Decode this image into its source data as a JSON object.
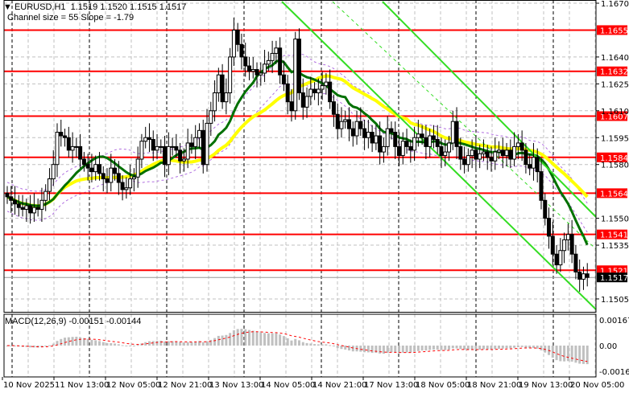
{
  "header": {
    "symbol_line": "EURUSD,H1  1.1519 1.1520 1.1515 1.1517",
    "channel_line": "Channel size = 55 Slope = -1.79",
    "macd_line": "MACD(12,26,9) -0.00151 -0.00144"
  },
  "colors": {
    "background": "#ffffff",
    "grid": "#c0c0c0",
    "level_line": "#ff0000",
    "level_label_bg": "#ff0000",
    "current_label_bg": "#000000",
    "ma_fast": "#007000",
    "ma_slow": "#ffff00",
    "channel": "#33dd22",
    "envelope": "#b06fe0",
    "macd_hist": "#c0c0c0",
    "macd_signal": "#ff0000"
  },
  "chart_data": [
    {
      "type": "candlestick",
      "title": "EURUSD,H1",
      "ohlc_last": {
        "open": 1.1519,
        "high": 1.152,
        "low": 1.1515,
        "close": 1.1517
      },
      "ylim": [
        1.1498,
        1.1672
      ],
      "y_ticks": [
        "1.1670",
        "1.1640",
        "1.1625",
        "1.1610",
        "1.1595",
        "1.1580",
        "1.1550",
        "1.1535",
        "1.1505"
      ],
      "x_ticks": [
        "10 Nov 2025",
        "11 Nov 13:00",
        "12 Nov 05:00",
        "12 Nov 21:00",
        "13 Nov 13:00",
        "14 Nov 05:00",
        "14 Nov 21:00",
        "17 Nov 13:00",
        "18 Nov 05:00",
        "18 Nov 21:00",
        "19 Nov 13:00",
        "20 Nov 05:00"
      ],
      "levels": [
        1.1655,
        1.1632,
        1.1607,
        1.1584,
        1.1564,
        1.1541,
        1.1521
      ],
      "current_price": 1.1517,
      "channel": {
        "size": 55,
        "slope": -1.79
      },
      "closes": [
        1.1562,
        1.156,
        1.1558,
        1.1556,
        1.1555,
        1.1557,
        1.1553,
        1.1556,
        1.1555,
        1.156,
        1.1565,
        1.1572,
        1.158,
        1.1598,
        1.1596,
        1.1595,
        1.1588,
        1.159,
        1.159,
        1.1583,
        1.158,
        1.1578,
        1.1576,
        1.158,
        1.1575,
        1.1572,
        1.157,
        1.1578,
        1.1575,
        1.157,
        1.1566,
        1.1567,
        1.1572,
        1.1573,
        1.1583,
        1.1593,
        1.1595,
        1.1594,
        1.1588,
        1.159,
        1.159,
        1.158,
        1.159,
        1.159,
        1.1588,
        1.1582,
        1.1583,
        1.1592,
        1.159,
        1.1595,
        1.1599,
        1.158,
        1.1603,
        1.161,
        1.162,
        1.163,
        1.1615,
        1.162,
        1.164,
        1.1655,
        1.1647,
        1.164,
        1.1635,
        1.1632,
        1.1633,
        1.163,
        1.1631,
        1.1636,
        1.1638,
        1.1642,
        1.1645,
        1.163,
        1.1625,
        1.1615,
        1.161,
        1.165,
        1.162,
        1.1612,
        1.1618,
        1.1622,
        1.162,
        1.1622,
        1.1624,
        1.1626,
        1.1615,
        1.1608,
        1.16,
        1.1604,
        1.1605,
        1.16,
        1.1596,
        1.1604,
        1.16,
        1.1595,
        1.1598,
        1.1592,
        1.1596,
        1.1587,
        1.159,
        1.16,
        1.1598,
        1.159,
        1.1585,
        1.1593,
        1.159,
        1.1588,
        1.1595,
        1.1597,
        1.1595,
        1.159,
        1.1596,
        1.1594,
        1.159,
        1.1585,
        1.1587,
        1.1592,
        1.1604,
        1.159,
        1.1583,
        1.158,
        1.1585,
        1.1588,
        1.1583,
        1.1586,
        1.1587,
        1.1584,
        1.1582,
        1.1587,
        1.1588,
        1.1585,
        1.1588,
        1.1583,
        1.159,
        1.1592,
        1.1588,
        1.158,
        1.1578,
        1.1584,
        1.1576,
        1.156,
        1.155,
        1.154,
        1.153,
        1.1524,
        1.1532,
        1.1538,
        1.1541,
        1.153,
        1.152,
        1.1516,
        1.1519,
        1.1517
      ]
    },
    {
      "type": "bar",
      "title": "MACD(12,26,9)",
      "values_label": {
        "main": -0.00151,
        "signal": -0.00144
      },
      "ylim": [
        -0.00175,
        0.00175
      ],
      "y_ticks": [
        "0.00167",
        "0.00",
        "-0.00167"
      ],
      "histogram_trend": "rises to ~0.0017 around 13 Nov 13:00, declines to ~-0.0005 by 17-19 Nov, drops to ~-0.0016 at 20 Nov"
    }
  ]
}
